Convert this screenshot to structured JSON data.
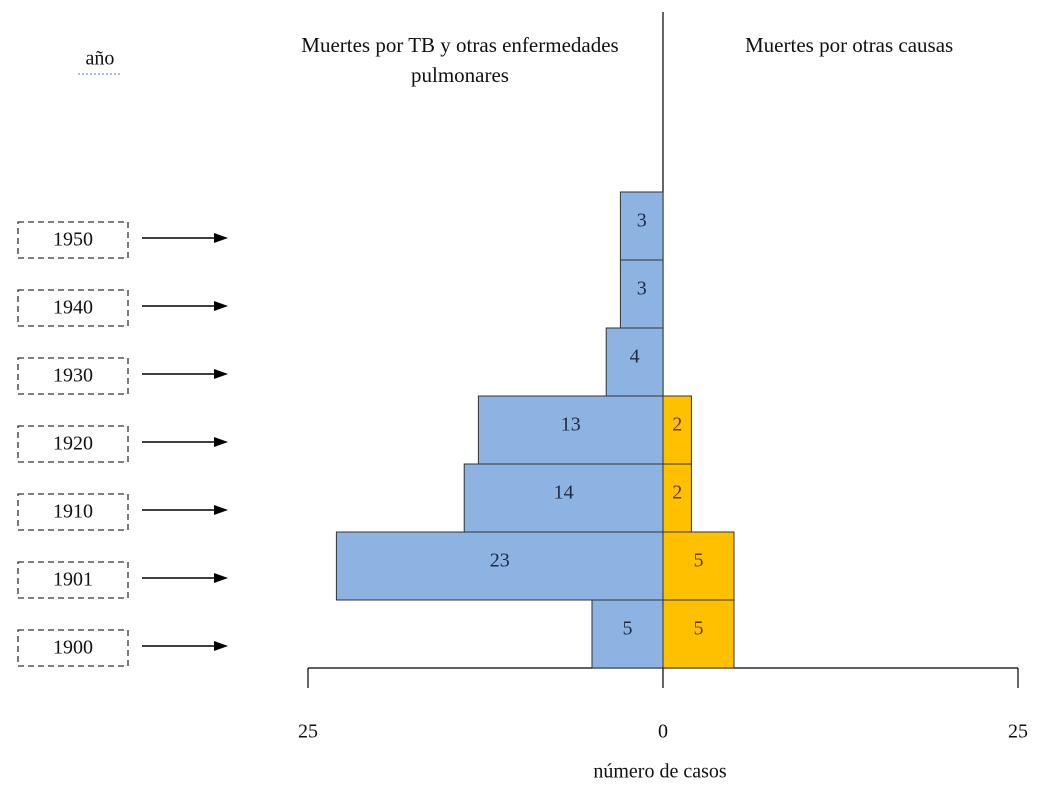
{
  "chart_data": {
    "type": "pyramid",
    "categories": [
      "1950",
      "1940",
      "1930",
      "1920",
      "1910",
      "1901",
      "1900"
    ],
    "category_label": "año",
    "x_label": "número de casos",
    "series": [
      {
        "name": "Muertes por TB y otras enfermedades pulmonares",
        "color": "#8db3e2",
        "side": "left",
        "values": [
          3,
          3,
          4,
          13,
          14,
          23,
          5
        ]
      },
      {
        "name": "Muertes por otras causas",
        "color": "#ffc000",
        "side": "right",
        "values": [
          null,
          null,
          null,
          2,
          2,
          5,
          5
        ]
      }
    ],
    "xlim": [
      -25,
      25
    ],
    "xticks": [
      {
        "value": -25,
        "label": "25"
      },
      0,
      25
    ]
  }
}
